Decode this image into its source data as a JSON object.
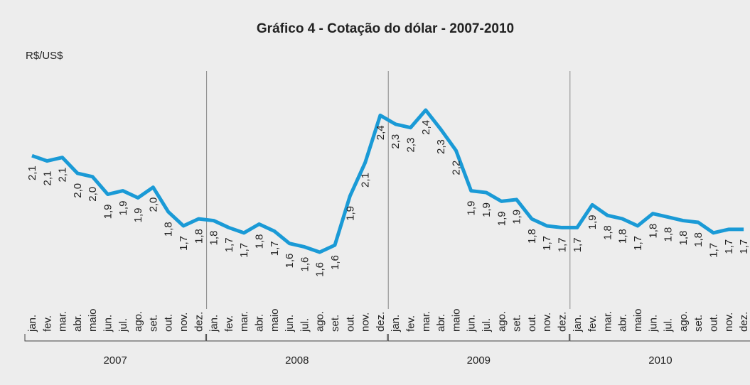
{
  "chart_data": {
    "type": "line",
    "title": "Gráfico 4 - Cotação do dólar - 2007-2010",
    "ylabel": "R$/US$",
    "color": "#1a9ad6",
    "categories": [
      "jan.",
      "fev.",
      "mar.",
      "abr.",
      "maio",
      "jun.",
      "jul.",
      "ago.",
      "set.",
      "out.",
      "nov.",
      "dez.",
      "jan.",
      "fev.",
      "mar.",
      "abr.",
      "maio",
      "jun.",
      "jul.",
      "ago.",
      "set.",
      "out.",
      "nov.",
      "dez.",
      "jan.",
      "fev.",
      "mar.",
      "abr.",
      "maio",
      "jun.",
      "jul.",
      "ago.",
      "set.",
      "out.",
      "nov.",
      "dez.",
      "jan.",
      "fev.",
      "mar.",
      "abr.",
      "maio",
      "jun.",
      "jul.",
      "ago.",
      "set.",
      "out.",
      "nov.",
      "dez."
    ],
    "years": [
      "2007",
      "2008",
      "2009",
      "2010"
    ],
    "values": [
      2.14,
      2.11,
      2.13,
      2.04,
      2.02,
      1.92,
      1.94,
      1.9,
      1.96,
      1.82,
      1.74,
      1.78,
      1.77,
      1.73,
      1.7,
      1.75,
      1.71,
      1.64,
      1.62,
      1.59,
      1.63,
      1.91,
      2.1,
      2.37,
      2.32,
      2.3,
      2.4,
      2.29,
      2.17,
      1.94,
      1.93,
      1.88,
      1.89,
      1.78,
      1.74,
      1.73,
      1.73,
      1.86,
      1.8,
      1.78,
      1.74,
      1.81,
      1.79,
      1.77,
      1.76,
      1.7,
      1.72,
      1.72
    ],
    "value_labels": [
      "2,1",
      "2,1",
      "2,1",
      "2,0",
      "2,0",
      "1,9",
      "1,9",
      "1,9",
      "2,0",
      "1,8",
      "1,7",
      "1,8",
      "1,8",
      "1,7",
      "1,7",
      "1,8",
      "1,7",
      "1,6",
      "1,6",
      "1,6",
      "1,6",
      "1,9",
      "2,1",
      "2,4",
      "2,3",
      "2,3",
      "2,4",
      "2,3",
      "2,2",
      "1,9",
      "1,9",
      "1,9",
      "1,9",
      "1,8",
      "1,7",
      "1,7",
      "1,7",
      "1,9",
      "1,8",
      "1,8",
      "1,7",
      "1,8",
      "1,8",
      "1,8",
      "1,8",
      "1,7",
      "1,7",
      "1,7"
    ]
  }
}
